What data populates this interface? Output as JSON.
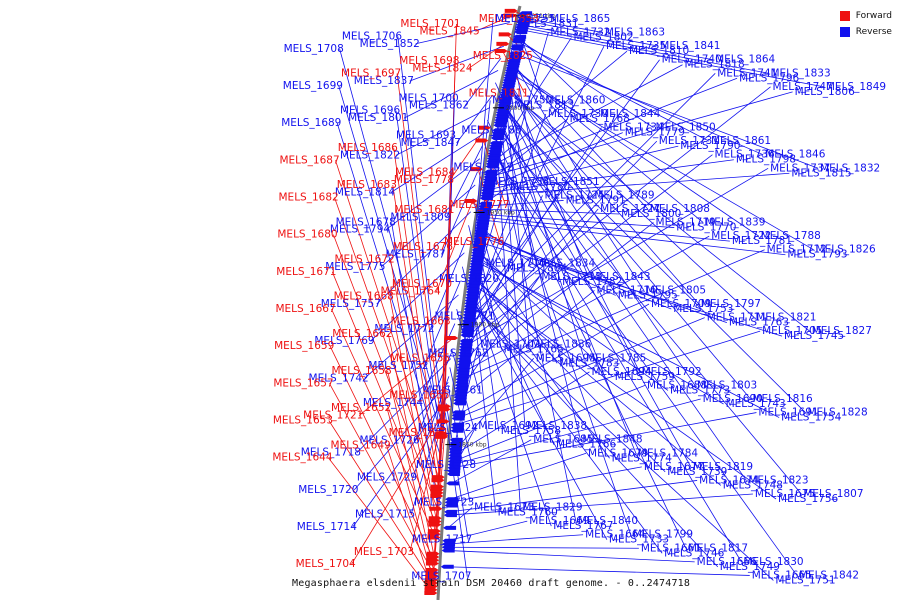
{
  "colors": {
    "forward": "#ee1111",
    "reverse": "#1111ee",
    "backbone": "#888888"
  },
  "legend": {
    "forward": "Forward",
    "reverse": "Reverse"
  },
  "caption": "Megasphaera elsdenii strain DSM 20460 draft genome. - 0..2474718",
  "ticks": [
    "2050 kbp",
    "2000 kbp",
    "1950 kbp",
    "1900 kbp",
    "1850 kbp"
  ],
  "genes": [
    {
      "name": "MELS_1853",
      "strand": "+"
    },
    {
      "name": "MELS_1865",
      "strand": "-"
    },
    {
      "name": "MELS_1845",
      "strand": "+"
    },
    {
      "name": "MELS_1863",
      "strand": "-"
    },
    {
      "name": "MELS_1841",
      "strand": "-"
    },
    {
      "name": "MELS_1852",
      "strand": "-"
    },
    {
      "name": "MELS_1864",
      "strand": "-"
    },
    {
      "name": "MELS_1833",
      "strand": "-"
    },
    {
      "name": "MELS_1849",
      "strand": "-"
    },
    {
      "name": "MELS_1860",
      "strand": "-"
    },
    {
      "name": "MELS_1825",
      "strand": "+"
    },
    {
      "name": "MELS_1844",
      "strand": "-"
    },
    {
      "name": "MELS_1850",
      "strand": "-"
    },
    {
      "name": "MELS_1861",
      "strand": "-"
    },
    {
      "name": "MELS_1824",
      "strand": "+"
    },
    {
      "name": "MELS_1837",
      "strand": "-"
    },
    {
      "name": "MELS_1846",
      "strand": "-"
    },
    {
      "name": "MELS_1811",
      "strand": "+"
    },
    {
      "name": "MELS_1832",
      "strand": "-"
    },
    {
      "name": "MELS_1851",
      "strand": "-"
    },
    {
      "name": "MELS_1862",
      "strand": "-"
    },
    {
      "name": "MELS_1789",
      "strand": "-"
    },
    {
      "name": "MELS_1808",
      "strand": "-"
    },
    {
      "name": "MELS_1839",
      "strand": "-"
    },
    {
      "name": "MELS_1788",
      "strand": "-"
    },
    {
      "name": "MELS_1801",
      "strand": "-"
    },
    {
      "name": "MELS_1826",
      "strand": "-"
    },
    {
      "name": "MELS_1834",
      "strand": "-"
    },
    {
      "name": "MELS_1843",
      "strand": "-"
    },
    {
      "name": "MELS_1805",
      "strand": "-"
    },
    {
      "name": "MELS_1786",
      "strand": "-"
    },
    {
      "name": "MELS_1797",
      "strand": "-"
    },
    {
      "name": "MELS_1821",
      "strand": "-"
    },
    {
      "name": "MELS_1827",
      "strand": "-"
    },
    {
      "name": "MELS_1836",
      "strand": "-"
    },
    {
      "name": "MELS_1847",
      "strand": "-"
    },
    {
      "name": "MELS_1785",
      "strand": "-"
    },
    {
      "name": "MELS_1792",
      "strand": "-"
    },
    {
      "name": "MELS_1803",
      "strand": "-"
    },
    {
      "name": "MELS_1816",
      "strand": "-"
    },
    {
      "name": "MELS_1822",
      "strand": "-"
    },
    {
      "name": "MELS_1828",
      "strand": "-"
    },
    {
      "name": "MELS_1838",
      "strand": "-"
    },
    {
      "name": "MELS_1848",
      "strand": "-"
    },
    {
      "name": "MELS_1784",
      "strand": "-"
    },
    {
      "name": "MELS_1812",
      "strand": "-"
    },
    {
      "name": "MELS_1819",
      "strand": "-"
    },
    {
      "name": "MELS_1823",
      "strand": "-"
    },
    {
      "name": "MELS_1778",
      "strand": "+"
    },
    {
      "name": "MELS_1807",
      "strand": "-"
    },
    {
      "name": "MELS_1814",
      "strand": "-"
    },
    {
      "name": "MELS_1829",
      "strand": "-"
    },
    {
      "name": "MELS_1840",
      "strand": "-"
    },
    {
      "name": "MELS_1777",
      "strand": "+"
    },
    {
      "name": "MELS_1799",
      "strand": "-"
    },
    {
      "name": "MELS_1809",
      "strand": "-"
    },
    {
      "name": "MELS_1817",
      "strand": "-"
    },
    {
      "name": "MELS_1830",
      "strand": "-"
    },
    {
      "name": "MELS_1842",
      "strand": "-"
    },
    {
      "name": "MELS_1831",
      "strand": "-"
    },
    {
      "name": "MELS_1794",
      "strand": "-"
    },
    {
      "name": "MELS_1802",
      "strand": "-"
    },
    {
      "name": "MELS_1810",
      "strand": "-"
    },
    {
      "name": "MELS_1818",
      "strand": "-"
    },
    {
      "name": "MELS_1776",
      "strand": "+"
    },
    {
      "name": "MELS_1787",
      "strand": "-"
    },
    {
      "name": "MELS_1796",
      "strand": "-"
    },
    {
      "name": "MELS_1806",
      "strand": "-"
    },
    {
      "name": "MELS_1813",
      "strand": "-"
    },
    {
      "name": "MELS_1768",
      "strand": "-"
    },
    {
      "name": "MELS_1775",
      "strand": "-"
    },
    {
      "name": "MELS_1779",
      "strand": "-"
    },
    {
      "name": "MELS_1790",
      "strand": "-"
    },
    {
      "name": "MELS_1798",
      "strand": "-"
    },
    {
      "name": "MELS_1815",
      "strand": "-"
    },
    {
      "name": "MELS_1820",
      "strand": "-"
    },
    {
      "name": "MELS_1764",
      "strand": "+"
    },
    {
      "name": "MELS_1780",
      "strand": "-"
    },
    {
      "name": "MELS_1791",
      "strand": "-"
    },
    {
      "name": "MELS_1800",
      "strand": "-"
    },
    {
      "name": "MELS_1757",
      "strand": "-"
    },
    {
      "name": "MELS_1770",
      "strand": "-"
    },
    {
      "name": "MELS_1781",
      "strand": "-"
    },
    {
      "name": "MELS_1793",
      "strand": "-"
    },
    {
      "name": "MELS_1804",
      "strand": "-"
    },
    {
      "name": "MELS_1771",
      "strand": "-"
    },
    {
      "name": "MELS_1782",
      "strand": "-"
    },
    {
      "name": "MELS_1795",
      "strand": "-"
    },
    {
      "name": "MELS_1753",
      "strand": "-"
    },
    {
      "name": "MELS_1763",
      "strand": "-"
    },
    {
      "name": "MELS_1772",
      "strand": "-"
    },
    {
      "name": "MELS_1745",
      "strand": "-"
    },
    {
      "name": "MELS_1765",
      "strand": "-"
    },
    {
      "name": "MELS_1783",
      "strand": "-"
    },
    {
      "name": "MELS_1759",
      "strand": "-"
    },
    {
      "name": "MELS_1769",
      "strand": "-"
    },
    {
      "name": "MELS_1773",
      "strand": "-"
    },
    {
      "name": "MELS_1743",
      "strand": "-"
    },
    {
      "name": "MELS_1754",
      "strand": "-"
    },
    {
      "name": "MELS_1758",
      "strand": "-"
    },
    {
      "name": "MELS_1762",
      "strand": "-"
    },
    {
      "name": "MELS_1766",
      "strand": "-"
    },
    {
      "name": "MELS_1774",
      "strand": "-"
    },
    {
      "name": "MELS_1739",
      "strand": "-"
    },
    {
      "name": "MELS_1748",
      "strand": "-"
    },
    {
      "name": "MELS_1752",
      "strand": "-"
    },
    {
      "name": "MELS_1756",
      "strand": "-"
    },
    {
      "name": "MELS_1760",
      "strand": "-"
    },
    {
      "name": "MELS_1767",
      "strand": "-"
    },
    {
      "name": "MELS_1733",
      "strand": "-"
    },
    {
      "name": "MELS_1742",
      "strand": "-"
    },
    {
      "name": "MELS_1746",
      "strand": "-"
    },
    {
      "name": "MELS_1749",
      "strand": "-"
    },
    {
      "name": "MELS_1751",
      "strand": "-"
    },
    {
      "name": "MELS_1755",
      "strand": "-"
    },
    {
      "name": "MELS_1761",
      "strand": "-"
    },
    {
      "name": "MELS_1732",
      "strand": "-"
    },
    {
      "name": "MELS_1735",
      "strand": "-"
    },
    {
      "name": "MELS_1740",
      "strand": "-"
    },
    {
      "name": "MELS_1741",
      "strand": "-"
    },
    {
      "name": "MELS_1744",
      "strand": "-"
    },
    {
      "name": "MELS_1747",
      "strand": "-"
    },
    {
      "name": "MELS_1750",
      "strand": "-"
    },
    {
      "name": "MELS_1730",
      "strand": "-"
    },
    {
      "name": "MELS_1734",
      "strand": "-"
    },
    {
      "name": "MELS_1721",
      "strand": "+"
    },
    {
      "name": "MELS_1731",
      "strand": "-"
    },
    {
      "name": "MELS_1736",
      "strand": "-"
    },
    {
      "name": "MELS_1737",
      "strand": "-"
    },
    {
      "name": "MELS_1724",
      "strand": "-"
    },
    {
      "name": "MELS_1726",
      "strand": "-"
    },
    {
      "name": "MELS_1738",
      "strand": "-"
    },
    {
      "name": "MELS_1718",
      "strand": "-"
    },
    {
      "name": "MELS_1725",
      "strand": "-"
    },
    {
      "name": "MELS_1727",
      "strand": "-"
    },
    {
      "name": "MELS_1728",
      "strand": "-"
    },
    {
      "name": "MELS_1719",
      "strand": "-"
    },
    {
      "name": "MELS_1722",
      "strand": "-"
    },
    {
      "name": "MELS_1729",
      "strand": "-"
    },
    {
      "name": "MELS_1712",
      "strand": "-"
    },
    {
      "name": "MELS_1720",
      "strand": "-"
    },
    {
      "name": "MELS_1723",
      "strand": "-"
    },
    {
      "name": "MELS_1710",
      "strand": "-"
    },
    {
      "name": "MELS_1713",
      "strand": "-"
    },
    {
      "name": "MELS_1715",
      "strand": "-"
    },
    {
      "name": "MELS_1714",
      "strand": "-"
    },
    {
      "name": "MELS_1716",
      "strand": "-"
    },
    {
      "name": "MELS_1717",
      "strand": "-"
    },
    {
      "name": "MELS_1703",
      "strand": "+"
    },
    {
      "name": "MELS_1704",
      "strand": "+"
    },
    {
      "name": "MELS_1707",
      "strand": "-"
    },
    {
      "name": "MELS_1709",
      "strand": "-"
    },
    {
      "name": "MELS_1711",
      "strand": "-"
    },
    {
      "name": "MELS_1701",
      "strand": "+"
    },
    {
      "name": "MELS_1705",
      "strand": "-"
    },
    {
      "name": "MELS_1706",
      "strand": "-"
    },
    {
      "name": "MELS_1708",
      "strand": "-"
    },
    {
      "name": "MELS_1698",
      "strand": "+"
    },
    {
      "name": "MELS_1697",
      "strand": "+"
    },
    {
      "name": "MELS_1699",
      "strand": "-"
    },
    {
      "name": "MELS_1700",
      "strand": "-"
    },
    {
      "name": "MELS_1702",
      "strand": "-"
    },
    {
      "name": "MELS_1696",
      "strand": "-"
    },
    {
      "name": "MELS_1695",
      "strand": "-"
    },
    {
      "name": "MELS_1694",
      "strand": "-"
    },
    {
      "name": "MELS_1689",
      "strand": "-"
    },
    {
      "name": "MELS_1688",
      "strand": "-"
    },
    {
      "name": "MELS_1690",
      "strand": "-"
    },
    {
      "name": "MELS_1691",
      "strand": "-"
    },
    {
      "name": "MELS_1692",
      "strand": "-"
    },
    {
      "name": "MELS_1693",
      "strand": "-"
    },
    {
      "name": "MELS_1686",
      "strand": "+"
    },
    {
      "name": "MELS_1687",
      "strand": "+"
    },
    {
      "name": "MELS_1685",
      "strand": "-"
    },
    {
      "name": "MELS_1684",
      "strand": "+"
    },
    {
      "name": "MELS_1683",
      "strand": "+"
    },
    {
      "name": "MELS_1682",
      "strand": "+"
    },
    {
      "name": "MELS_1681",
      "strand": "+"
    },
    {
      "name": "MELS_1679",
      "strand": "-"
    },
    {
      "name": "MELS_1677",
      "strand": "-"
    },
    {
      "name": "MELS_1678",
      "strand": "-"
    },
    {
      "name": "MELS_1680",
      "strand": "+"
    },
    {
      "name": "MELS_1674",
      "strand": "-"
    },
    {
      "name": "MELS_1675",
      "strand": "-"
    },
    {
      "name": "MELS_1676",
      "strand": "+"
    },
    {
      "name": "MELS_1672",
      "strand": "+"
    },
    {
      "name": "MELS_1671",
      "strand": "+"
    },
    {
      "name": "MELS_1673",
      "strand": "-"
    },
    {
      "name": "MELS_1670",
      "strand": "+"
    },
    {
      "name": "MELS_1668",
      "strand": "+"
    },
    {
      "name": "MELS_1667",
      "strand": "+"
    },
    {
      "name": "MELS_1669",
      "strand": "-"
    },
    {
      "name": "MELS_1664",
      "strand": "-"
    },
    {
      "name": "MELS_1661",
      "strand": "-"
    },
    {
      "name": "MELS_1666",
      "strand": "-"
    },
    {
      "name": "MELS_1663",
      "strand": "+"
    },
    {
      "name": "MELS_1662",
      "strand": "+"
    },
    {
      "name": "MELS_1659",
      "strand": "+"
    },
    {
      "name": "MELS_1655",
      "strand": "+"
    },
    {
      "name": "MELS_1665",
      "strand": "-"
    },
    {
      "name": "MELS_1658",
      "strand": "+"
    },
    {
      "name": "MELS_1657",
      "strand": "+"
    },
    {
      "name": "MELS_1656",
      "strand": "+"
    },
    {
      "name": "MELS_1652",
      "strand": "+"
    },
    {
      "name": "MELS_1653",
      "strand": "+"
    },
    {
      "name": "MELS_1651",
      "strand": "+"
    },
    {
      "name": "MELS_1649",
      "strand": "+"
    },
    {
      "name": "MELS_1644",
      "strand": "+"
    }
  ]
}
